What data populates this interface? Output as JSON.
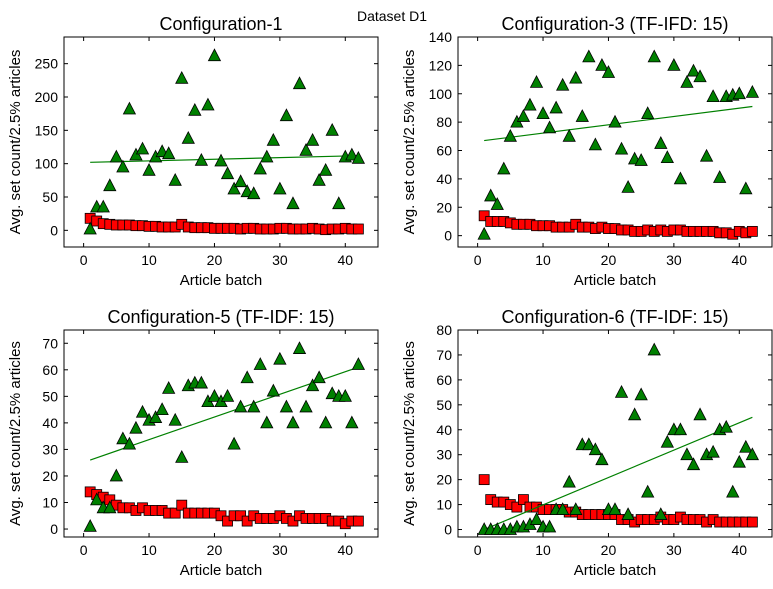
{
  "figure": {
    "suptitle": "Dataset D1",
    "colors": {
      "config_sets": "#008000",
      "red_series": "#ff0000",
      "trend": "#008000",
      "marker_edge": "#000000"
    }
  },
  "chart_data": [
    {
      "type": "scatter",
      "title": "Configuration-1",
      "xlabel": "Article batch",
      "ylabel": "Avg. set count/2.5% articles",
      "xlim": [
        -3,
        45
      ],
      "ylim": [
        -25,
        290
      ],
      "xticks": [
        0,
        10,
        20,
        30,
        40
      ],
      "yticks": [
        0,
        50,
        100,
        150,
        200,
        250
      ],
      "series": [
        {
          "marker": "triangle",
          "color": "#008000",
          "x": [
            1,
            2,
            3,
            4,
            5,
            6,
            7,
            8,
            9,
            10,
            11,
            12,
            13,
            14,
            15,
            16,
            17,
            18,
            19,
            20,
            21,
            22,
            23,
            24,
            25,
            26,
            27,
            28,
            29,
            30,
            31,
            32,
            33,
            34,
            35,
            36,
            37,
            38,
            39,
            40,
            41,
            42
          ],
          "y": [
            2,
            35,
            35,
            67,
            110,
            95,
            182,
            113,
            122,
            90,
            110,
            118,
            115,
            75,
            228,
            138,
            180,
            105,
            188,
            262,
            104,
            85,
            62,
            73,
            58,
            55,
            92,
            110,
            135,
            62,
            172,
            40,
            220,
            120,
            135,
            75,
            90,
            150,
            40,
            110,
            113,
            108
          ],
          "trend": [
            102,
            112
          ]
        },
        {
          "marker": "square",
          "color": "#ff0000",
          "x": [
            1,
            2,
            3,
            4,
            5,
            6,
            7,
            8,
            9,
            10,
            11,
            12,
            13,
            14,
            15,
            16,
            17,
            18,
            19,
            20,
            21,
            22,
            23,
            24,
            25,
            26,
            27,
            28,
            29,
            30,
            31,
            32,
            33,
            34,
            35,
            36,
            37,
            38,
            39,
            40,
            41,
            42
          ],
          "y": [
            18,
            14,
            10,
            9,
            8,
            8,
            8,
            7,
            7,
            6,
            6,
            5,
            5,
            5,
            9,
            5,
            4,
            4,
            4,
            3,
            3,
            3,
            3,
            2,
            3,
            3,
            2,
            2,
            2,
            3,
            3,
            2,
            2,
            2,
            3,
            2,
            1,
            2,
            2,
            3,
            2,
            2
          ]
        }
      ]
    },
    {
      "type": "scatter",
      "title": "Configuration-3 (TF-IFD: 15)",
      "xlabel": "Article batch",
      "ylabel": "Avg. set count/2.5% articles",
      "xlim": [
        -3,
        45
      ],
      "ylim": [
        -8,
        140
      ],
      "xticks": [
        0,
        10,
        20,
        30,
        40
      ],
      "yticks": [
        0,
        20,
        40,
        60,
        80,
        100,
        120,
        140
      ],
      "series": [
        {
          "marker": "triangle",
          "color": "#008000",
          "x": [
            1,
            2,
            3,
            4,
            5,
            6,
            7,
            8,
            9,
            10,
            11,
            12,
            13,
            14,
            15,
            16,
            17,
            18,
            19,
            20,
            21,
            22,
            23,
            24,
            25,
            26,
            27,
            28,
            29,
            30,
            31,
            32,
            33,
            34,
            35,
            36,
            37,
            38,
            39,
            40,
            41,
            42
          ],
          "y": [
            1,
            28,
            22,
            47,
            70,
            80,
            84,
            92,
            108,
            86,
            76,
            90,
            106,
            70,
            111,
            84,
            126,
            64,
            120,
            115,
            80,
            61,
            34,
            54,
            53,
            86,
            126,
            65,
            55,
            120,
            40,
            108,
            116,
            112,
            56,
            98,
            41,
            98,
            99,
            100,
            33,
            101
          ],
          "trend": [
            67,
            91
          ]
        },
        {
          "marker": "square",
          "color": "#ff0000",
          "x": [
            1,
            2,
            3,
            4,
            5,
            6,
            7,
            8,
            9,
            10,
            11,
            12,
            13,
            14,
            15,
            16,
            17,
            18,
            19,
            20,
            21,
            22,
            23,
            24,
            25,
            26,
            27,
            28,
            29,
            30,
            31,
            32,
            33,
            34,
            35,
            36,
            37,
            38,
            39,
            40,
            41,
            42
          ],
          "y": [
            14,
            10,
            10,
            10,
            9,
            8,
            8,
            8,
            7,
            7,
            7,
            6,
            6,
            6,
            8,
            6,
            6,
            5,
            6,
            5,
            5,
            4,
            4,
            3,
            3,
            4,
            3,
            4,
            3,
            4,
            4,
            3,
            3,
            3,
            3,
            3,
            2,
            2,
            1,
            3,
            2,
            3
          ]
        }
      ]
    },
    {
      "type": "scatter",
      "title": "Configuration-5 (TF-IDF: 15)",
      "xlabel": "Article batch",
      "ylabel": "Avg. set count/2.5% articles",
      "xlim": [
        -3,
        45
      ],
      "ylim": [
        -3,
        75
      ],
      "xticks": [
        0,
        10,
        20,
        30,
        40
      ],
      "yticks": [
        0,
        10,
        20,
        30,
        40,
        50,
        60,
        70
      ],
      "series": [
        {
          "marker": "triangle",
          "color": "#008000",
          "x": [
            1,
            2,
            3,
            4,
            5,
            6,
            7,
            8,
            9,
            10,
            11,
            12,
            13,
            14,
            15,
            16,
            17,
            18,
            19,
            20,
            21,
            22,
            23,
            24,
            25,
            26,
            27,
            28,
            29,
            30,
            31,
            32,
            33,
            34,
            35,
            36,
            37,
            38,
            39,
            40,
            41,
            42
          ],
          "y": [
            1,
            11,
            8,
            8,
            20,
            34,
            32,
            38,
            44,
            41,
            42,
            45,
            53,
            41,
            27,
            54,
            55,
            55,
            48,
            50,
            48,
            50,
            32,
            46,
            57,
            46,
            62,
            40,
            52,
            64,
            46,
            40,
            68,
            46,
            54,
            57,
            40,
            51,
            50,
            50,
            40,
            62
          ],
          "trend": [
            26,
            61
          ]
        },
        {
          "marker": "square",
          "color": "#ff0000",
          "x": [
            1,
            2,
            3,
            4,
            5,
            6,
            7,
            8,
            9,
            10,
            11,
            12,
            13,
            14,
            15,
            16,
            17,
            18,
            19,
            20,
            21,
            22,
            23,
            24,
            25,
            26,
            27,
            28,
            29,
            30,
            31,
            32,
            33,
            34,
            35,
            36,
            37,
            38,
            39,
            40,
            41,
            42
          ],
          "y": [
            14,
            13,
            12,
            11,
            9,
            8,
            8,
            7,
            8,
            7,
            7,
            7,
            6,
            6,
            9,
            6,
            6,
            6,
            6,
            6,
            5,
            3,
            5,
            5,
            3,
            5,
            4,
            4,
            4,
            5,
            4,
            3,
            5,
            4,
            4,
            4,
            4,
            3,
            3,
            2,
            3,
            3
          ]
        }
      ]
    },
    {
      "type": "scatter",
      "title": "Configuration-6 (TF-IDF: 15)",
      "xlabel": "Article batch",
      "ylabel": "Avg. set count/2.5% articles",
      "xlim": [
        -3,
        45
      ],
      "ylim": [
        -3,
        80
      ],
      "xticks": [
        0,
        10,
        20,
        30,
        40
      ],
      "yticks": [
        0,
        10,
        20,
        30,
        40,
        50,
        60,
        70,
        80
      ],
      "series": [
        {
          "marker": "triangle",
          "color": "#008000",
          "x": [
            1,
            2,
            3,
            4,
            5,
            6,
            7,
            8,
            9,
            10,
            11,
            12,
            13,
            14,
            15,
            16,
            17,
            18,
            19,
            20,
            21,
            22,
            23,
            24,
            25,
            26,
            27,
            28,
            29,
            30,
            31,
            32,
            33,
            34,
            35,
            36,
            37,
            38,
            39,
            40,
            41,
            42
          ],
          "y": [
            0,
            0,
            0,
            0,
            0,
            1,
            1,
            2,
            4,
            1,
            1,
            8,
            8,
            19,
            8,
            34,
            34,
            32,
            28,
            8,
            8,
            55,
            6,
            46,
            54,
            15,
            72,
            6,
            35,
            40,
            40,
            30,
            26,
            46,
            30,
            31,
            40,
            41,
            15,
            27,
            33,
            30
          ],
          "trend": [
            0,
            45
          ]
        },
        {
          "marker": "square",
          "color": "#ff0000",
          "x": [
            1,
            2,
            3,
            4,
            5,
            6,
            7,
            8,
            9,
            10,
            11,
            12,
            13,
            14,
            15,
            16,
            17,
            18,
            19,
            20,
            21,
            22,
            23,
            24,
            25,
            26,
            27,
            28,
            29,
            30,
            31,
            32,
            33,
            34,
            35,
            36,
            37,
            38,
            39,
            40,
            41,
            42
          ],
          "y": [
            20,
            12,
            11,
            11,
            10,
            9,
            12,
            9,
            9,
            8,
            8,
            8,
            8,
            7,
            7,
            6,
            6,
            6,
            6,
            6,
            6,
            4,
            4,
            3,
            4,
            4,
            4,
            5,
            4,
            4,
            5,
            4,
            4,
            4,
            3,
            4,
            3,
            3,
            3,
            3,
            3,
            3
          ]
        }
      ]
    }
  ]
}
